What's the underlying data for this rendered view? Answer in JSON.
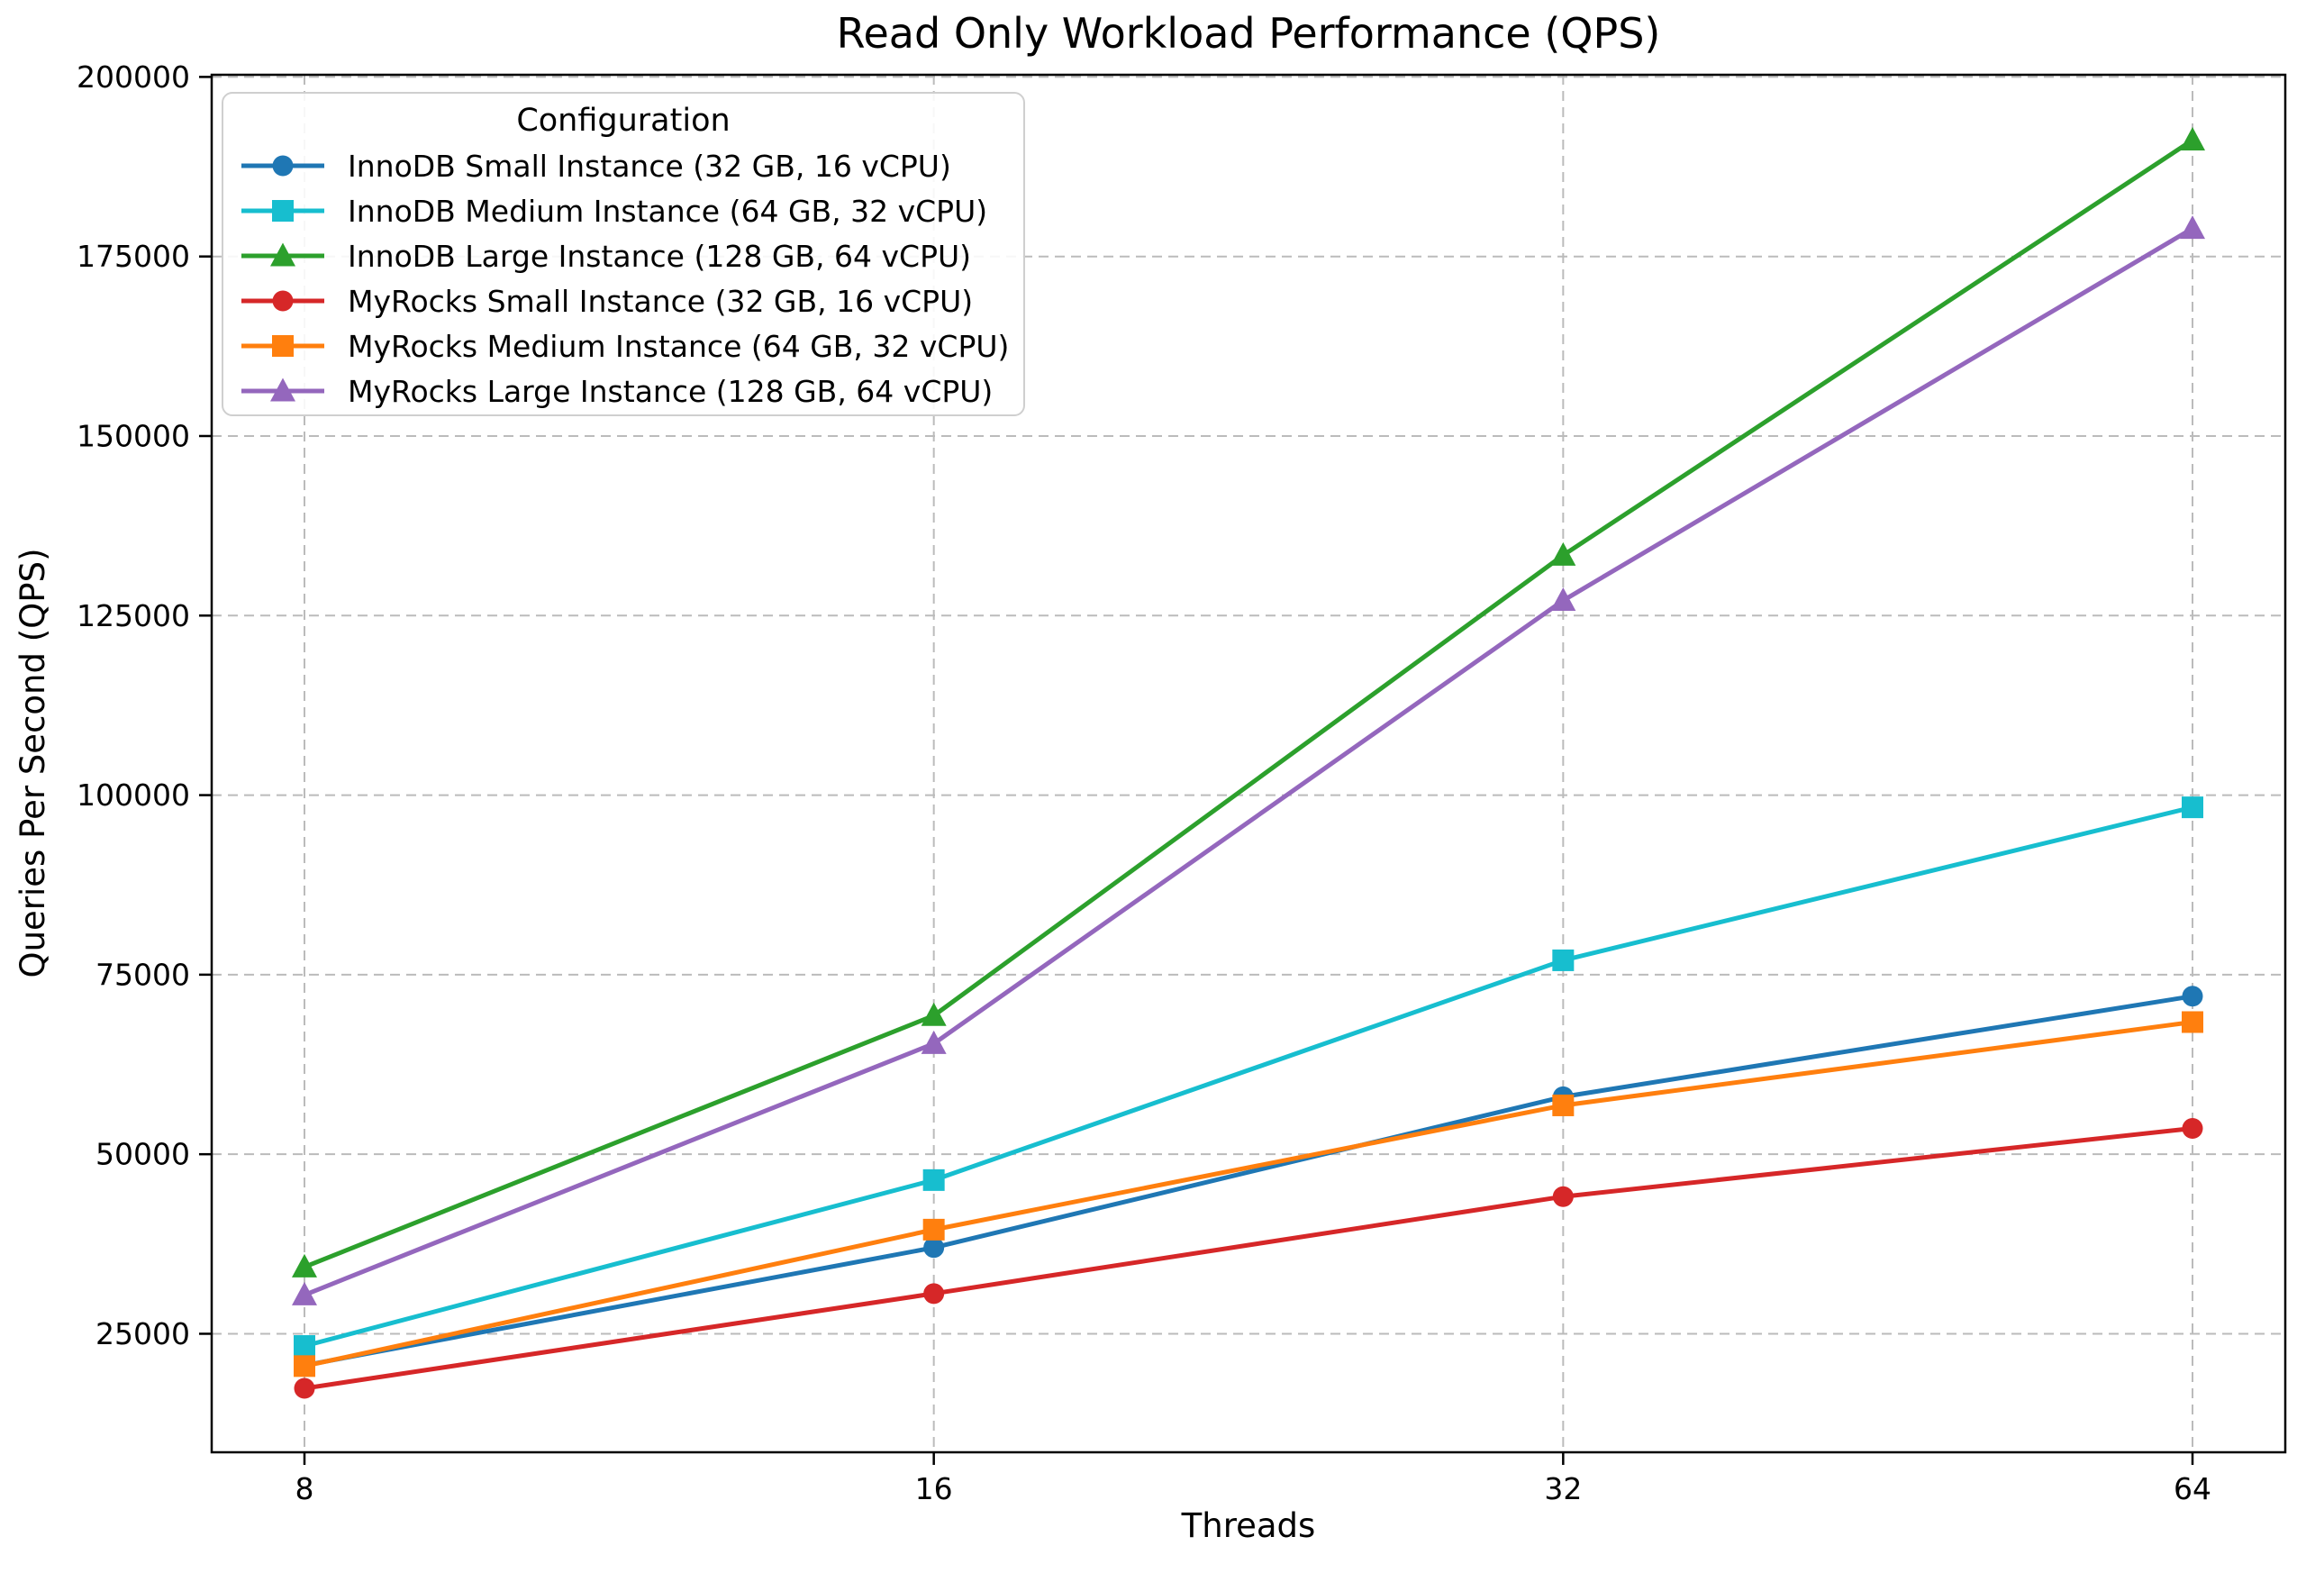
{
  "figure": {
    "title": "Read Only Workload Performance (QPS)",
    "xlabel": "Threads",
    "ylabel": "Queries Per Second (QPS)"
  },
  "legend": {
    "title": "Configuration"
  },
  "chart_data": {
    "type": "line",
    "title": "Read Only Workload Performance (QPS)",
    "xlabel": "Threads",
    "ylabel": "Queries Per Second (QPS)",
    "categories": [
      8,
      16,
      32,
      64
    ],
    "x_tick_labels": [
      "8",
      "16",
      "32",
      "64"
    ],
    "y_ticks": [
      25000,
      50000,
      75000,
      100000,
      125000,
      150000,
      175000,
      200000
    ],
    "y_tick_labels": [
      "25000",
      "50000",
      "75000",
      "100000",
      "125000",
      "150000",
      "175000",
      "200000"
    ],
    "ylim": [
      8500,
      200300
    ],
    "grid": true,
    "grid_style": "dashed",
    "legend_position": "upper left",
    "legend_title": "Configuration",
    "background_color": "#ffffff",
    "spine_color": "#000000",
    "grid_color": "#bbbbbb",
    "series": [
      {
        "name": "InnoDB Small Instance (32 GB, 16 vCPU)",
        "color": "#1f77b4",
        "marker": "circle",
        "values": [
          20600,
          37000,
          58000,
          72000
        ]
      },
      {
        "name": "InnoDB Medium Instance (64 GB, 32 vCPU)",
        "color": "#17becf",
        "marker": "square",
        "values": [
          23300,
          46400,
          77000,
          98300
        ]
      },
      {
        "name": "InnoDB Large Instance (128 GB, 64 vCPU)",
        "color": "#2ca02c",
        "marker": "triangle",
        "values": [
          34300,
          69300,
          133400,
          191200
        ]
      },
      {
        "name": "MyRocks Small Instance (32 GB, 16 vCPU)",
        "color": "#d62728",
        "marker": "circle",
        "values": [
          17400,
          30600,
          44100,
          53600
        ]
      },
      {
        "name": "MyRocks Medium Instance (64 GB, 32 vCPU)",
        "color": "#ff7f0e",
        "marker": "square",
        "values": [
          20500,
          39500,
          56800,
          68400
        ]
      },
      {
        "name": "MyRocks Large Instance (128 GB, 64 vCPU)",
        "color": "#9467bd",
        "marker": "triangle",
        "values": [
          30400,
          65400,
          127100,
          178900
        ]
      }
    ]
  }
}
